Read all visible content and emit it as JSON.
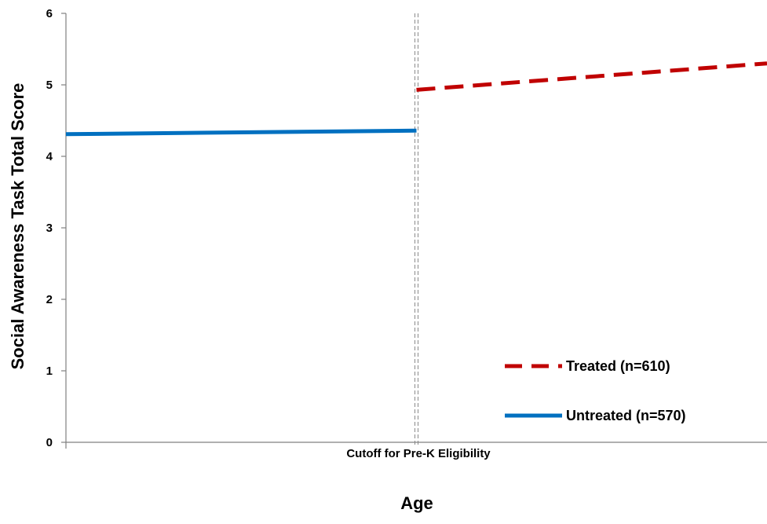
{
  "chart_data": {
    "type": "line",
    "title": "",
    "xlabel": "Age",
    "ylabel": "Social Awareness Task Total Score",
    "ylim": [
      0,
      6
    ],
    "xlim": [
      -1,
      1
    ],
    "y_ticks": [
      "0",
      "1",
      "2",
      "3",
      "4",
      "5",
      "6"
    ],
    "cutoff": {
      "x": 0,
      "label": "Cutoff for Pre-K Eligibility"
    },
    "series": [
      {
        "name": "Treated (n=610)",
        "color": "#C00000",
        "style": "dashed",
        "points": [
          {
            "x": 0,
            "y": 4.93
          },
          {
            "x": 1,
            "y": 5.3
          }
        ]
      },
      {
        "name": "Untreated (n=570)",
        "color": "#0070C0",
        "style": "solid",
        "points": [
          {
            "x": -1,
            "y": 4.31
          },
          {
            "x": 0,
            "y": 4.36
          }
        ]
      }
    ],
    "legend": {
      "position": "bottom-right",
      "entries": [
        {
          "label": "Treated (n=610)",
          "color": "#C00000",
          "style": "dashed"
        },
        {
          "label": "Untreated (n=570)",
          "color": "#0070C0",
          "style": "solid"
        }
      ]
    },
    "grid": false
  }
}
